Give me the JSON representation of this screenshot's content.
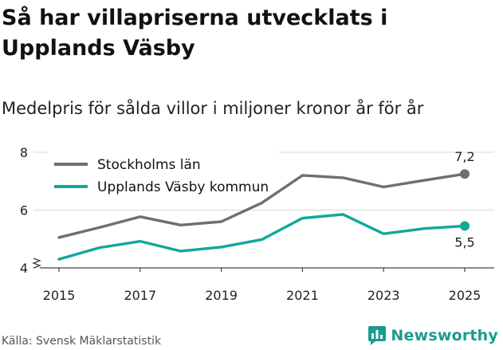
{
  "title": "Så har villapriserna utvecklats i Upplands Väsby",
  "subtitle": "Medelpris för sålda villor i miljoner kronor år för år",
  "source": "Källa: Svensk Mäklarstatistik",
  "brand": {
    "name": "Newsworthy",
    "icon": "newsworthy-bar-chart-icon",
    "color": "#1a9c8f"
  },
  "chart_data": {
    "type": "line",
    "x": [
      2015,
      2016,
      2017,
      2018,
      2019,
      2020,
      2021,
      2022,
      2023,
      2024,
      2025
    ],
    "xticks": [
      "2015",
      "2017",
      "2019",
      "2021",
      "2023",
      "2025"
    ],
    "yticks": [
      "4",
      "6",
      "8"
    ],
    "ylim": [
      4,
      8
    ],
    "axis_break": true,
    "grid": "horizontal",
    "legend": "top-left",
    "series": [
      {
        "name": "Stockholms län",
        "color": "#6e6e73",
        "values": [
          5.05,
          5.4,
          5.77,
          5.48,
          5.6,
          6.25,
          7.2,
          7.12,
          6.8,
          7.03,
          7.25
        ],
        "end_label": "7,2"
      },
      {
        "name": "Upplands Väsby kommun",
        "color": "#10a89b",
        "values": [
          4.3,
          4.7,
          4.92,
          4.58,
          4.72,
          4.98,
          5.72,
          5.85,
          5.18,
          5.36,
          5.45
        ],
        "end_label": "5,5"
      }
    ]
  }
}
